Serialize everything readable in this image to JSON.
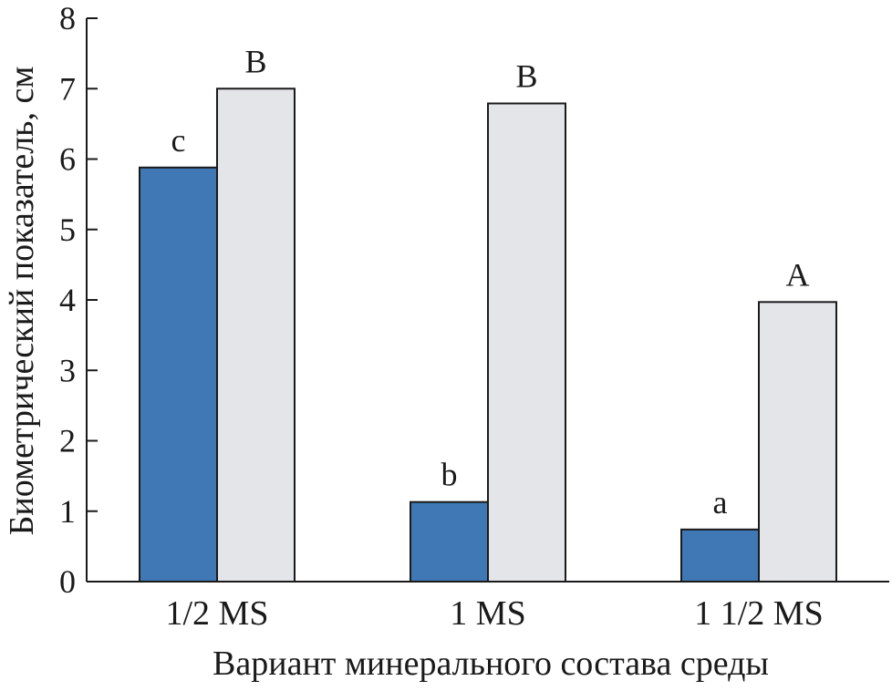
{
  "chart_data": {
    "type": "bar",
    "title": "",
    "xlabel": "Вариант минерального состава среды",
    "ylabel": "Биометрический показатель, см",
    "categories": [
      "1/2 MS",
      "1 MS",
      "1 1/2 MS"
    ],
    "ylim": [
      0,
      8
    ],
    "yticks": [
      "0",
      "1",
      "2",
      "3",
      "4",
      "5",
      "6",
      "7",
      "8"
    ],
    "series": [
      {
        "color": "#3f78b5",
        "values": [
          5.88,
          1.13,
          0.74
        ],
        "letters": [
          "c",
          "b",
          "a"
        ]
      },
      {
        "color": "#e4e5e9",
        "values": [
          7.0,
          6.79,
          3.97
        ],
        "letters": [
          "B",
          "B",
          "A"
        ]
      }
    ],
    "grid": false,
    "legend": "none"
  }
}
